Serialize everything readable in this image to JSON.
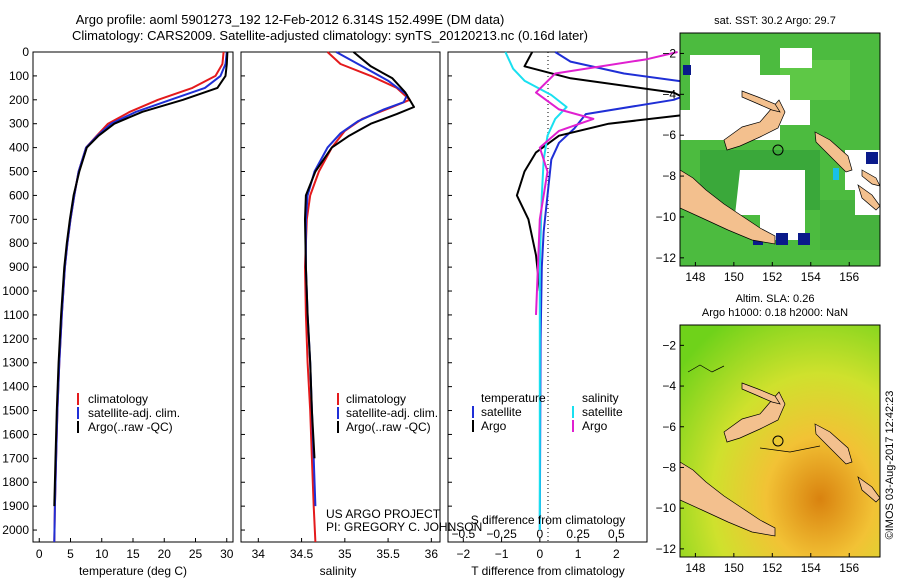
{
  "header": {
    "title_line1": "Argo profile: aoml 5901273_192 12-Feb-2012 6.314S 152.499E (DM data)",
    "title_line2": "Climatology: CARS2009. Satellite-adjusted climatology: synTS_20120213.nc (0.16d later)"
  },
  "credits": {
    "project": "US ARGO PROJECT",
    "pi": "PI: GREGORY C. JOHNSON",
    "imos": "©IMOS 03-Aug-2017 12:42:23"
  },
  "colors": {
    "climatology": "#e41a1c",
    "satellite": "#1f2fd6",
    "argo": "#000000",
    "salinity_satellite": "#19e0f0",
    "salinity_argo": "#e020d0",
    "land": "#f3c08e"
  },
  "chart_data": [
    {
      "type": "line",
      "id": "temperature",
      "xlabel": "temperature (deg C)",
      "xlim": [
        -1,
        31
      ],
      "xticks": [
        0,
        5,
        10,
        15,
        20,
        25,
        30
      ],
      "xtick_labels": [
        "0",
        "5",
        "10",
        "15",
        "20",
        "25",
        "30"
      ],
      "ylim": [
        0,
        2050
      ],
      "yticks": [
        0,
        100,
        200,
        300,
        400,
        500,
        600,
        700,
        800,
        900,
        1000,
        1100,
        1200,
        1300,
        1400,
        1500,
        1600,
        1700,
        1800,
        1900,
        2000
      ],
      "ytick_labels": [
        "0",
        "100",
        "200",
        "300",
        "400",
        "500",
        "600",
        "700",
        "800",
        "900",
        "1000",
        "1100",
        "1200",
        "1300",
        "1400",
        "1500",
        "1600",
        "1700",
        "1800",
        "1900",
        "2000"
      ],
      "legend": [
        "climatology",
        "satellite-adj. clim.",
        "Argo(..raw -QC)"
      ],
      "series": [
        {
          "name": "climatology",
          "x": [
            29.5,
            29.3,
            28.2,
            24.5,
            19.0,
            14.5,
            11.0,
            9.2,
            7.5,
            6.3,
            5.6,
            5.0,
            4.5,
            4.1,
            3.6,
            3.2,
            2.9,
            2.7,
            2.5,
            2.4
          ],
          "depth": [
            0,
            50,
            100,
            150,
            200,
            250,
            300,
            350,
            400,
            500,
            600,
            700,
            800,
            900,
            1100,
            1300,
            1500,
            1700,
            1900,
            2050
          ]
        },
        {
          "name": "satellite-adj. clim.",
          "x": [
            30.0,
            29.8,
            29.0,
            26.5,
            21.0,
            15.5,
            11.5,
            9.3,
            7.5,
            6.3,
            5.6,
            5.0,
            4.5,
            4.1,
            3.6,
            3.2,
            2.9,
            2.7,
            2.5,
            2.4
          ],
          "depth": [
            0,
            50,
            100,
            150,
            200,
            250,
            300,
            350,
            400,
            500,
            600,
            700,
            800,
            900,
            1100,
            1300,
            1500,
            1700,
            1900,
            2050
          ]
        },
        {
          "name": "Argo(..raw -QC)",
          "x": [
            30.1,
            30.0,
            29.8,
            28.5,
            23.0,
            16.5,
            12.0,
            9.5,
            7.6,
            6.4,
            5.5,
            4.9,
            4.4,
            4.0,
            3.5,
            3.1,
            2.8,
            2.6,
            2.4
          ],
          "depth": [
            0,
            50,
            100,
            150,
            200,
            250,
            300,
            350,
            400,
            500,
            600,
            700,
            800,
            900,
            1100,
            1300,
            1500,
            1700,
            1900
          ]
        }
      ]
    },
    {
      "type": "line",
      "id": "salinity",
      "xlabel": "salinity",
      "xlim": [
        33.8,
        36.1
      ],
      "xticks": [
        34,
        34.5,
        35,
        35.5,
        36
      ],
      "xtick_labels": [
        "34",
        "34.5",
        "35",
        "35.5",
        "36"
      ],
      "ylim": [
        0,
        2050
      ],
      "legend": [
        "climatology",
        "satellite-adj. clim.",
        "Argo(..raw -QC)"
      ],
      "series": [
        {
          "name": "climatology",
          "x": [
            34.8,
            34.95,
            35.3,
            35.6,
            35.75,
            35.55,
            35.2,
            35.0,
            34.85,
            34.7,
            34.6,
            34.56,
            34.54,
            34.55,
            34.57,
            34.6,
            34.62,
            34.64,
            34.66
          ],
          "depth": [
            0,
            50,
            100,
            150,
            200,
            230,
            280,
            330,
            400,
            500,
            600,
            700,
            900,
            1100,
            1300,
            1500,
            1700,
            1900,
            2050
          ]
        },
        {
          "name": "satellite-adj. clim.",
          "x": [
            34.9,
            35.2,
            35.5,
            35.72,
            35.68,
            35.45,
            35.15,
            34.95,
            34.8,
            34.65,
            34.57,
            34.55,
            34.55,
            34.57,
            34.6,
            34.62,
            34.64,
            34.66
          ],
          "depth": [
            0,
            60,
            120,
            180,
            210,
            240,
            290,
            340,
            400,
            500,
            600,
            700,
            900,
            1100,
            1300,
            1500,
            1700,
            1900
          ]
        },
        {
          "name": "Argo(..raw -QC)",
          "x": [
            35.1,
            35.3,
            35.55,
            35.7,
            35.8,
            35.6,
            35.3,
            35.05,
            34.85,
            34.66,
            34.55,
            34.54,
            34.55,
            34.57,
            34.6,
            34.62,
            34.65
          ],
          "depth": [
            0,
            60,
            110,
            170,
            230,
            260,
            300,
            350,
            400,
            500,
            600,
            700,
            900,
            1100,
            1300,
            1500,
            1700
          ]
        }
      ]
    },
    {
      "type": "line",
      "id": "difference",
      "xlabel": "T difference from climatology",
      "xlabel2": "S difference from climatology",
      "xlim": [
        -2.4,
        2.8
      ],
      "xticks": [
        -2,
        -1,
        0,
        1,
        2
      ],
      "xtick_labels": [
        "−2",
        "−1",
        "0",
        "1",
        "2"
      ],
      "s_ticks": [
        -0.5,
        -0.25,
        0,
        0.25,
        0.5
      ],
      "s_tick_labels": [
        "−0.5",
        "−0.25",
        "0",
        "0.25",
        "0.5"
      ],
      "ylim": [
        0,
        2050
      ],
      "legend_temperature": "temperature",
      "legend_salinity": "salinity",
      "legend_items": [
        "satellite",
        "Argo",
        "satellite",
        "Argo"
      ],
      "series": [
        {
          "name": "temperature satellite",
          "x": [
            0.4,
            0.8,
            2.2,
            4.5,
            3.5,
            1.2,
            0.9,
            0.5,
            0.3,
            0.2,
            0.1,
            0.05,
            0.02,
            0.0
          ],
          "depth": [
            0,
            40,
            90,
            140,
            200,
            260,
            320,
            380,
            450,
            600,
            750,
            900,
            1200,
            2000
          ]
        },
        {
          "name": "temperature Argo",
          "x": [
            -0.2,
            -0.4,
            0.8,
            3.5,
            4.5,
            1.8,
            0.5,
            -0.1,
            -0.4,
            -0.6,
            -0.3,
            -0.1,
            0.0
          ],
          "depth": [
            0,
            60,
            110,
            170,
            250,
            300,
            350,
            420,
            500,
            600,
            700,
            850,
            1000
          ]
        },
        {
          "name": "salinity satellite",
          "x": [
            -0.9,
            -0.7,
            -0.4,
            0.3,
            0.7,
            0.4,
            0.2,
            0.1,
            0.05,
            0.0,
            0.0
          ],
          "depth": [
            0,
            70,
            120,
            180,
            230,
            280,
            350,
            450,
            600,
            900,
            2000
          ]
        },
        {
          "name": "salinity Argo",
          "x": [
            3.6,
            2.8,
            0.4,
            -0.1,
            0.5,
            1.4,
            0.5,
            0.0,
            0.2,
            0.0,
            -0.1
          ],
          "depth": [
            0,
            30,
            90,
            170,
            240,
            280,
            330,
            400,
            500,
            700,
            1100
          ]
        }
      ]
    },
    {
      "type": "heatmap",
      "id": "sst-map",
      "title": "sat. SST: 30.2  Argo: 29.7",
      "xticks": [
        148,
        150,
        152,
        154,
        156
      ],
      "yticks": [
        -2,
        -4,
        -6,
        -8,
        -10,
        -12
      ],
      "xlim": [
        147.2,
        157.6
      ],
      "ylim": [
        -12.4,
        -1.0
      ],
      "profile_location": {
        "lon": 152.499,
        "lat": -6.314
      }
    },
    {
      "type": "heatmap",
      "id": "sla-map",
      "title_line1": "Altim. SLA: 0.26",
      "title_line2": "Argo h1000: 0.18  h2000: NaN",
      "xticks": [
        148,
        150,
        152,
        154,
        156
      ],
      "yticks": [
        -2,
        -4,
        -6,
        -8,
        -10,
        -12
      ],
      "xlim": [
        147.2,
        157.6
      ],
      "ylim": [
        -12.4,
        -1.0
      ],
      "profile_location": {
        "lon": 152.499,
        "lat": -6.314
      }
    }
  ]
}
